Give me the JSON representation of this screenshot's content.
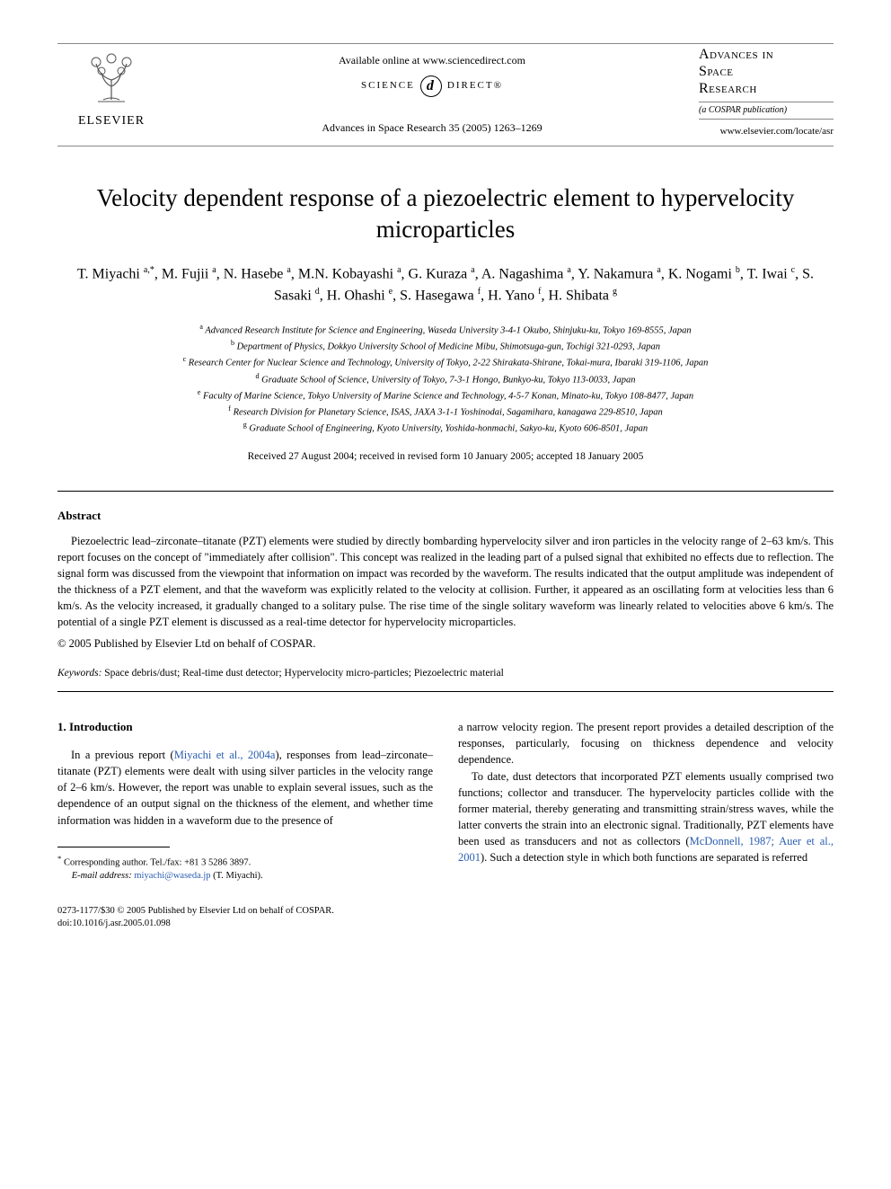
{
  "header": {
    "elsevier_label": "ELSEVIER",
    "available_line": "Available online at www.sciencedirect.com",
    "sd_left": "SCIENCE",
    "sd_d": "d",
    "sd_right": "DIRECT®",
    "journal_ref": "Advances in Space Research 35 (2005) 1263–1269",
    "journal_title_l1": "Advances in",
    "journal_title_l2": "Space",
    "journal_title_l3": "Research",
    "cospar": "(a COSPAR publication)",
    "journal_url": "www.elsevier.com/locate/asr"
  },
  "title": "Velocity dependent response of a piezoelectric element to hypervelocity microparticles",
  "authors_html": "T. Miyachi <sup>a,*</sup>, M. Fujii <sup>a</sup>, N. Hasebe <sup>a</sup>, M.N. Kobayashi <sup>a</sup>, G. Kuraza <sup>a</sup>, A. Nagashima <sup>a</sup>, Y. Nakamura <sup>a</sup>, K. Nogami <sup>b</sup>, T. Iwai <sup>c</sup>, S. Sasaki <sup>d</sup>, H. Ohashi <sup>e</sup>, S. Hasegawa <sup>f</sup>, H. Yano <sup>f</sup>, H. Shibata <sup>g</sup>",
  "affiliations": [
    {
      "sup": "a",
      "text": "Advanced Research Institute for Science and Engineering, Waseda University 3-4-1 Okubo, Shinjuku-ku, Tokyo 169-8555, Japan"
    },
    {
      "sup": "b",
      "text": "Department of Physics, Dokkyo University School of Medicine Mibu, Shimotsuga-gun, Tochigi 321-0293, Japan"
    },
    {
      "sup": "c",
      "text": "Research Center for Nuclear Science and Technology, University of Tokyo, 2-22 Shirakata-Shirane, Tokai-mura, Ibaraki 319-1106, Japan"
    },
    {
      "sup": "d",
      "text": "Graduate School of Science, University of Tokyo, 7-3-1 Hongo, Bunkyo-ku, Tokyo 113-0033, Japan"
    },
    {
      "sup": "e",
      "text": "Faculty of Marine Science, Tokyo University of Marine Science and Technology, 4-5-7 Konan, Minato-ku, Tokyo 108-8477, Japan"
    },
    {
      "sup": "f",
      "text": "Research Division for Planetary Science, ISAS, JAXA 3-1-1 Yoshinodai, Sagamihara, kanagawa 229-8510, Japan"
    },
    {
      "sup": "g",
      "text": "Graduate School of Engineering, Kyoto University, Yoshida-honmachi, Sakyo-ku, Kyoto 606-8501, Japan"
    }
  ],
  "dates": "Received 27 August 2004; received in revised form 10 January 2005; accepted 18 January 2005",
  "abstract": {
    "heading": "Abstract",
    "body": "Piezoelectric lead–zirconate–titanate (PZT) elements were studied by directly bombarding hypervelocity silver and iron particles in the velocity range of 2–63 km/s. This report focuses on the concept of \"immediately after collision\". This concept was realized in the leading part of a pulsed signal that exhibited no effects due to reflection. The signal form was discussed from the viewpoint that information on impact was recorded by the waveform. The results indicated that the output amplitude was independent of the thickness of a PZT element, and that the waveform was explicitly related to the velocity at collision. Further, it appeared as an oscillating form at velocities less than 6 km/s. As the velocity increased, it gradually changed to a solitary pulse. The rise time of the single solitary waveform was linearly related to velocities above 6 km/s. The potential of a single PZT element is discussed as a real-time detector for hypervelocity microparticles.",
    "copyright": "© 2005 Published by Elsevier Ltd on behalf of COSPAR."
  },
  "keywords": {
    "label": "Keywords:",
    "text": " Space debris/dust; Real-time dust detector; Hypervelocity micro-particles; Piezoelectric material"
  },
  "intro": {
    "heading": "1. Introduction",
    "left_p1_a": "In a previous report (",
    "left_p1_link": "Miyachi et al., 2004a",
    "left_p1_b": "), responses from lead–zirconate–titanate (PZT) elements were dealt with using silver particles in the velocity range of 2–6 km/s. However, the report was unable to explain several issues, such as the dependence of an output signal on the thickness of the element, and whether time information was hidden in a waveform due to the presence of",
    "right_p1": "a narrow velocity region. The present report provides a detailed description of the responses, particularly, focusing on thickness dependence and velocity dependence.",
    "right_p2_a": "To date, dust detectors that incorporated PZT elements usually comprised two functions; collector and transducer. The hypervelocity particles collide with the former material, thereby generating and transmitting strain/stress waves, while the latter converts the strain into an electronic signal. Traditionally, PZT elements have been used as transducers and not as collectors (",
    "right_p2_link": "McDonnell, 1987; Auer et al., 2001",
    "right_p2_b": "). Such a detection style in which both functions are separated is referred"
  },
  "footnote": {
    "corr": "Corresponding author. Tel./fax: +81 3 5286 3897.",
    "email_label": "E-mail address:",
    "email": " miyachi@waseda.jp ",
    "email_tail": "(T. Miyachi)."
  },
  "footer": {
    "line1": "0273-1177/$30 © 2005 Published by Elsevier Ltd on behalf of COSPAR.",
    "line2": "doi:10.1016/j.asr.2005.01.098"
  },
  "colors": {
    "link": "#2a5db0",
    "rule": "#888888",
    "text": "#000000",
    "bg": "#ffffff"
  }
}
